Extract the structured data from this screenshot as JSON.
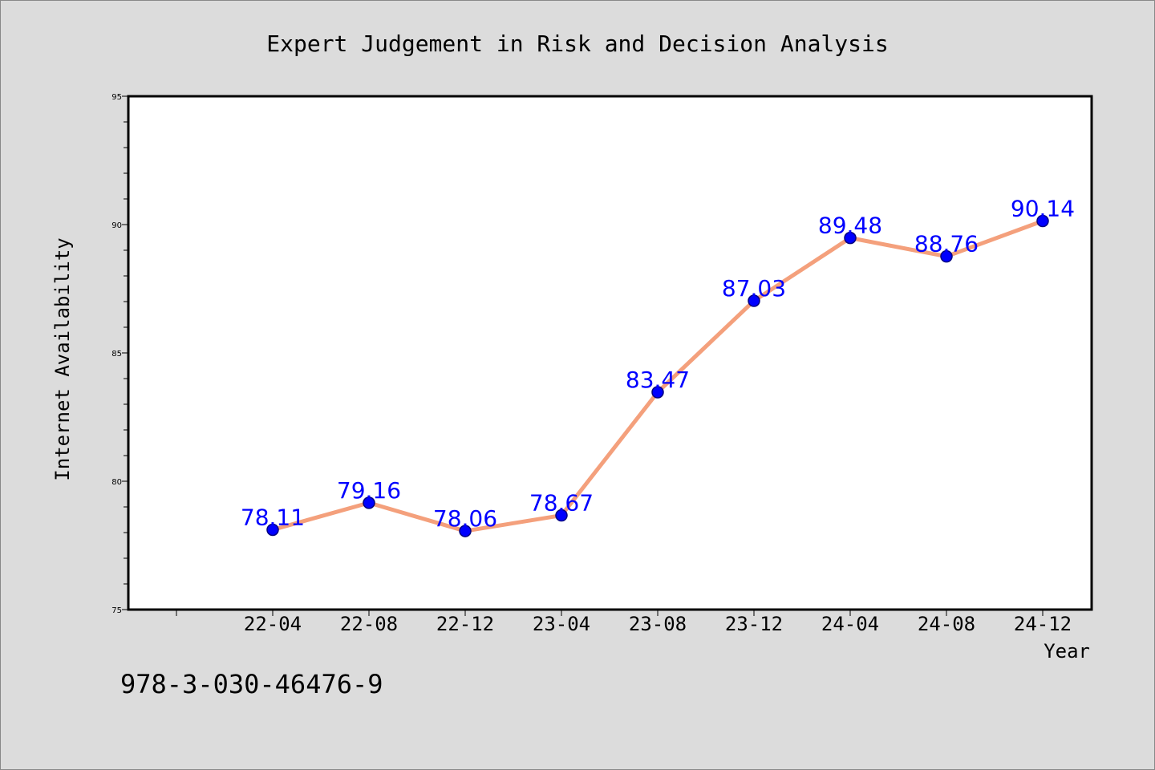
{
  "chart_data": {
    "type": "line",
    "title": "Expert Judgement in Risk and Decision Analysis",
    "xlabel": "Year",
    "ylabel": "Internet Availability",
    "x": [
      "22-04",
      "22-08",
      "22-12",
      "23-04",
      "23-08",
      "23-12",
      "24-04",
      "24-08",
      "24-12"
    ],
    "series": [
      {
        "values": [
          78.11,
          79.16,
          78.06,
          78.67,
          83.47,
          87.03,
          89.48,
          88.76,
          90.14
        ]
      }
    ],
    "data_labels": [
      "78.11",
      "79.16",
      "78.06",
      "78.67",
      "83.47",
      "87.03",
      "89.48",
      "88.76",
      "90.14"
    ],
    "ylim": [
      75,
      95
    ],
    "yticks": [
      "75",
      "80",
      "85",
      "90",
      "95"
    ],
    "grid": false,
    "colors": {
      "line": "#f4a07c",
      "marker": "#0000ff",
      "marker_edge": "#000080",
      "label": "#0000ff",
      "background": "#dcdcdc",
      "plot_background": "#ffffff"
    }
  },
  "footer": {
    "code": "978-3-030-46476-9"
  }
}
